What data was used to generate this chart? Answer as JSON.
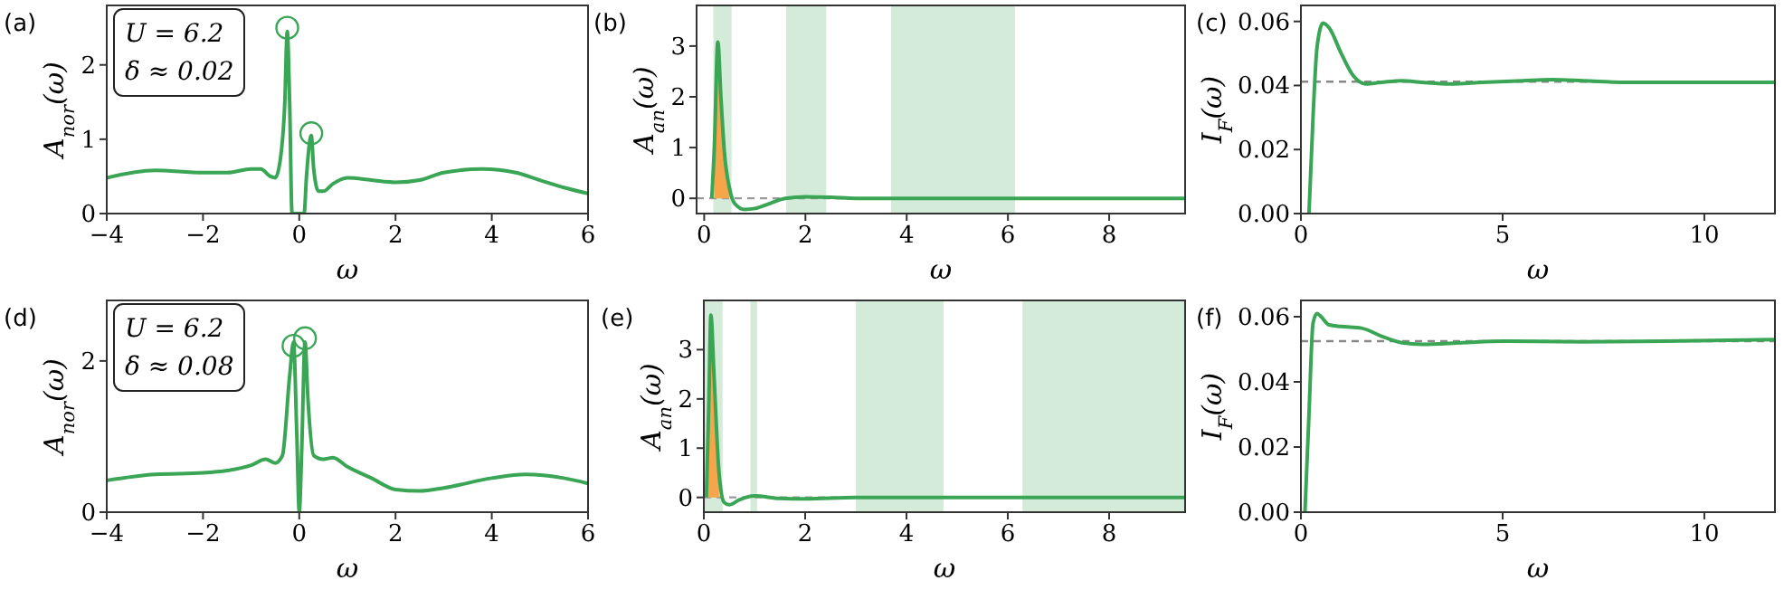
{
  "chart_data": [
    {
      "type": "line",
      "title": "(a)",
      "xlabel": "ω",
      "ylabel": "A$_{nor}$(ω)",
      "annotations": [
        "U = 6.2",
        "δ ≈ 0.02"
      ],
      "xlim": [
        -4,
        6
      ],
      "ylim": [
        0,
        2.8
      ],
      "xticks": [
        -4,
        -2,
        0,
        2,
        4,
        6
      ],
      "yticks": [
        0,
        1,
        2
      ],
      "series": [
        {
          "type": "line",
          "color": "#3aa655",
          "x": [
            -4,
            -3,
            -2,
            -1.5,
            -1,
            -0.8,
            -0.6,
            -0.5,
            -0.4,
            -0.3,
            -0.25,
            -0.2,
            -0.15,
            0.1,
            0.15,
            0.25,
            0.3,
            0.4,
            0.5,
            0.7,
            1,
            1.5,
            2,
            2.5,
            3,
            3.8,
            4.5,
            5,
            5.5,
            6
          ],
          "values": [
            0.48,
            0.58,
            0.55,
            0.55,
            0.6,
            0.6,
            0.5,
            0.48,
            0.7,
            1.5,
            2.45,
            1.5,
            0,
            0,
            0.5,
            1.05,
            0.6,
            0.3,
            0.3,
            0.4,
            0.48,
            0.45,
            0.42,
            0.45,
            0.55,
            0.6,
            0.55,
            0.45,
            0.35,
            0.27
          ]
        },
        {
          "type": "scatter",
          "marker": "circle",
          "color": "#3aa655",
          "x": [
            -0.25,
            0.25
          ],
          "values": [
            2.5,
            1.08
          ]
        }
      ]
    },
    {
      "type": "line",
      "title": "(b)",
      "xlabel": "ω",
      "ylabel": "A$_{an}$(ω)",
      "xlim": [
        -0.15,
        9.5
      ],
      "ylim": [
        -0.3,
        3.8
      ],
      "xticks": [
        0,
        2,
        4,
        6,
        8
      ],
      "yticks": [
        0,
        1,
        2,
        3
      ],
      "bands": [
        {
          "axis": "x",
          "from": 0.18,
          "to": 0.54,
          "color": "#d4ebd9"
        },
        {
          "axis": "x",
          "from": 1.62,
          "to": 2.41,
          "color": "#d4ebd9"
        },
        {
          "axis": "x",
          "from": 3.69,
          "to": 6.14,
          "color": "#d4ebd9"
        }
      ],
      "ref_lines": [
        {
          "axis": "y",
          "value": 0,
          "color": "#999999",
          "line_style": "dashed"
        }
      ],
      "series": [
        {
          "type": "area",
          "color": "#f5a54a",
          "x": [
            0.2,
            0.27,
            0.33,
            0.4,
            0.5
          ],
          "values": [
            1.0,
            3.08,
            2,
            0.9,
            0.2
          ]
        },
        {
          "type": "line",
          "color": "#3aa655",
          "x": [
            0.15,
            0.2,
            0.27,
            0.33,
            0.4,
            0.5,
            0.6,
            0.8,
            1,
            1.3,
            1.6,
            2,
            2.5,
            3,
            4,
            9.5
          ],
          "values": [
            0,
            1,
            3.08,
            2,
            0.9,
            0.2,
            -0.1,
            -0.22,
            -0.2,
            -0.1,
            0,
            0.03,
            0.02,
            0,
            0,
            0
          ]
        }
      ]
    },
    {
      "type": "line",
      "title": "(c)",
      "xlabel": "ω",
      "ylabel": "I$_{F}$(ω)",
      "xlim": [
        0,
        11.75
      ],
      "ylim": [
        0,
        0.065
      ],
      "xticks": [
        0,
        5,
        10
      ],
      "yticks": [
        {
          "value": 0,
          "label": "0.00"
        },
        {
          "value": 0.02,
          "label": "0.02"
        },
        {
          "value": 0.04,
          "label": "0.04"
        },
        {
          "value": 0.06,
          "label": "0.06"
        }
      ],
      "ref_lines": [
        {
          "axis": "y",
          "value": 0.0412,
          "color": "#888888",
          "line_style": "dashed"
        }
      ],
      "series": [
        {
          "type": "line",
          "color": "#3aa655",
          "x": [
            0.2,
            0.3,
            0.4,
            0.55,
            0.7,
            1,
            1.3,
            1.6,
            2,
            2.5,
            3,
            3.7,
            4.5,
            5.5,
            6.2,
            7,
            8,
            9,
            10,
            11.75
          ],
          "values": [
            0,
            0.03,
            0.052,
            0.0595,
            0.058,
            0.05,
            0.043,
            0.0405,
            0.041,
            0.0415,
            0.041,
            0.0405,
            0.041,
            0.0415,
            0.0418,
            0.0415,
            0.041,
            0.041,
            0.041,
            0.041
          ]
        }
      ]
    },
    {
      "type": "line",
      "title": "(d)",
      "xlabel": "ω",
      "ylabel": "A$_{nor}$(ω)",
      "annotations": [
        "U = 6.2",
        "δ ≈ 0.08"
      ],
      "xlim": [
        -4,
        6
      ],
      "ylim": [
        0,
        2.8
      ],
      "xticks": [
        -4,
        -2,
        0,
        2,
        4,
        6
      ],
      "yticks": [
        0,
        2
      ],
      "series": [
        {
          "type": "line",
          "color": "#3aa655",
          "x": [
            -4,
            -3,
            -2,
            -1.5,
            -1,
            -0.7,
            -0.5,
            -0.35,
            -0.2,
            -0.12,
            -0.05,
            0,
            0.05,
            0.12,
            0.18,
            0.3,
            0.5,
            0.7,
            1,
            1.5,
            2,
            2.5,
            3,
            4,
            4.7,
            5.5,
            6
          ],
          "values": [
            0.42,
            0.5,
            0.52,
            0.55,
            0.62,
            0.7,
            0.65,
            0.75,
            1.8,
            2.25,
            1,
            0,
            0.8,
            2.25,
            1.5,
            0.75,
            0.7,
            0.72,
            0.6,
            0.45,
            0.3,
            0.28,
            0.32,
            0.45,
            0.5,
            0.45,
            0.38
          ]
        },
        {
          "type": "scatter",
          "marker": "circle",
          "color": "#3aa655",
          "x": [
            -0.12,
            0.12
          ],
          "values": [
            2.2,
            2.3
          ]
        }
      ]
    },
    {
      "type": "line",
      "title": "(e)",
      "xlabel": "ω",
      "ylabel": "A$_{an}$(ω)",
      "xlim": [
        0,
        9.5
      ],
      "ylim": [
        -0.3,
        4
      ],
      "xticks": [
        0,
        2,
        4,
        6,
        8
      ],
      "yticks": [
        0,
        1,
        2,
        3
      ],
      "bands": [
        {
          "axis": "x",
          "from": 0,
          "to": 0.37,
          "color": "#d4ebd9"
        },
        {
          "axis": "x",
          "from": 0.92,
          "to": 1.05,
          "color": "#d4ebd9"
        },
        {
          "axis": "x",
          "from": 3,
          "to": 4.73,
          "color": "#d4ebd9"
        },
        {
          "axis": "x",
          "from": 6.29,
          "to": 9.5,
          "color": "#d4ebd9"
        }
      ],
      "ref_lines": [
        {
          "axis": "y",
          "value": 0,
          "color": "#999999",
          "line_style": "dashed"
        }
      ],
      "series": [
        {
          "type": "area",
          "color": "#f5a54a",
          "x": [
            0.07,
            0.1,
            0.14,
            0.2,
            0.3
          ],
          "values": [
            1,
            2,
            3.7,
            2.5,
            0.5
          ]
        },
        {
          "type": "line",
          "color": "#3aa655",
          "x": [
            0.05,
            0.1,
            0.14,
            0.2,
            0.3,
            0.4,
            0.5,
            0.7,
            1,
            1.5,
            2,
            3,
            9.5
          ],
          "values": [
            0,
            2,
            3.7,
            2.5,
            0.5,
            -0.1,
            -0.15,
            -0.05,
            0.03,
            -0.02,
            -0.03,
            0,
            0
          ]
        }
      ]
    },
    {
      "type": "line",
      "title": "(f)",
      "xlabel": "ω",
      "ylabel": "I$_{F}$(ω)",
      "xlim": [
        0,
        11.75
      ],
      "ylim": [
        0,
        0.065
      ],
      "xticks": [
        0,
        5,
        10
      ],
      "yticks": [
        {
          "value": 0,
          "label": "0.00"
        },
        {
          "value": 0.02,
          "label": "0.02"
        },
        {
          "value": 0.04,
          "label": "0.04"
        },
        {
          "value": 0.06,
          "label": "0.06"
        }
      ],
      "ref_lines": [
        {
          "axis": "y",
          "value": 0.0525,
          "color": "#888888",
          "line_style": "dashed"
        }
      ],
      "series": [
        {
          "type": "line",
          "color": "#3aa655",
          "x": [
            0.1,
            0.2,
            0.3,
            0.4,
            0.5,
            0.7,
            1,
            1.5,
            2,
            2.5,
            3,
            4,
            5,
            7,
            9,
            11.75
          ],
          "values": [
            0,
            0.03,
            0.058,
            0.061,
            0.06,
            0.0575,
            0.057,
            0.0565,
            0.054,
            0.052,
            0.0515,
            0.052,
            0.0525,
            0.0523,
            0.0525,
            0.053
          ]
        }
      ]
    }
  ]
}
